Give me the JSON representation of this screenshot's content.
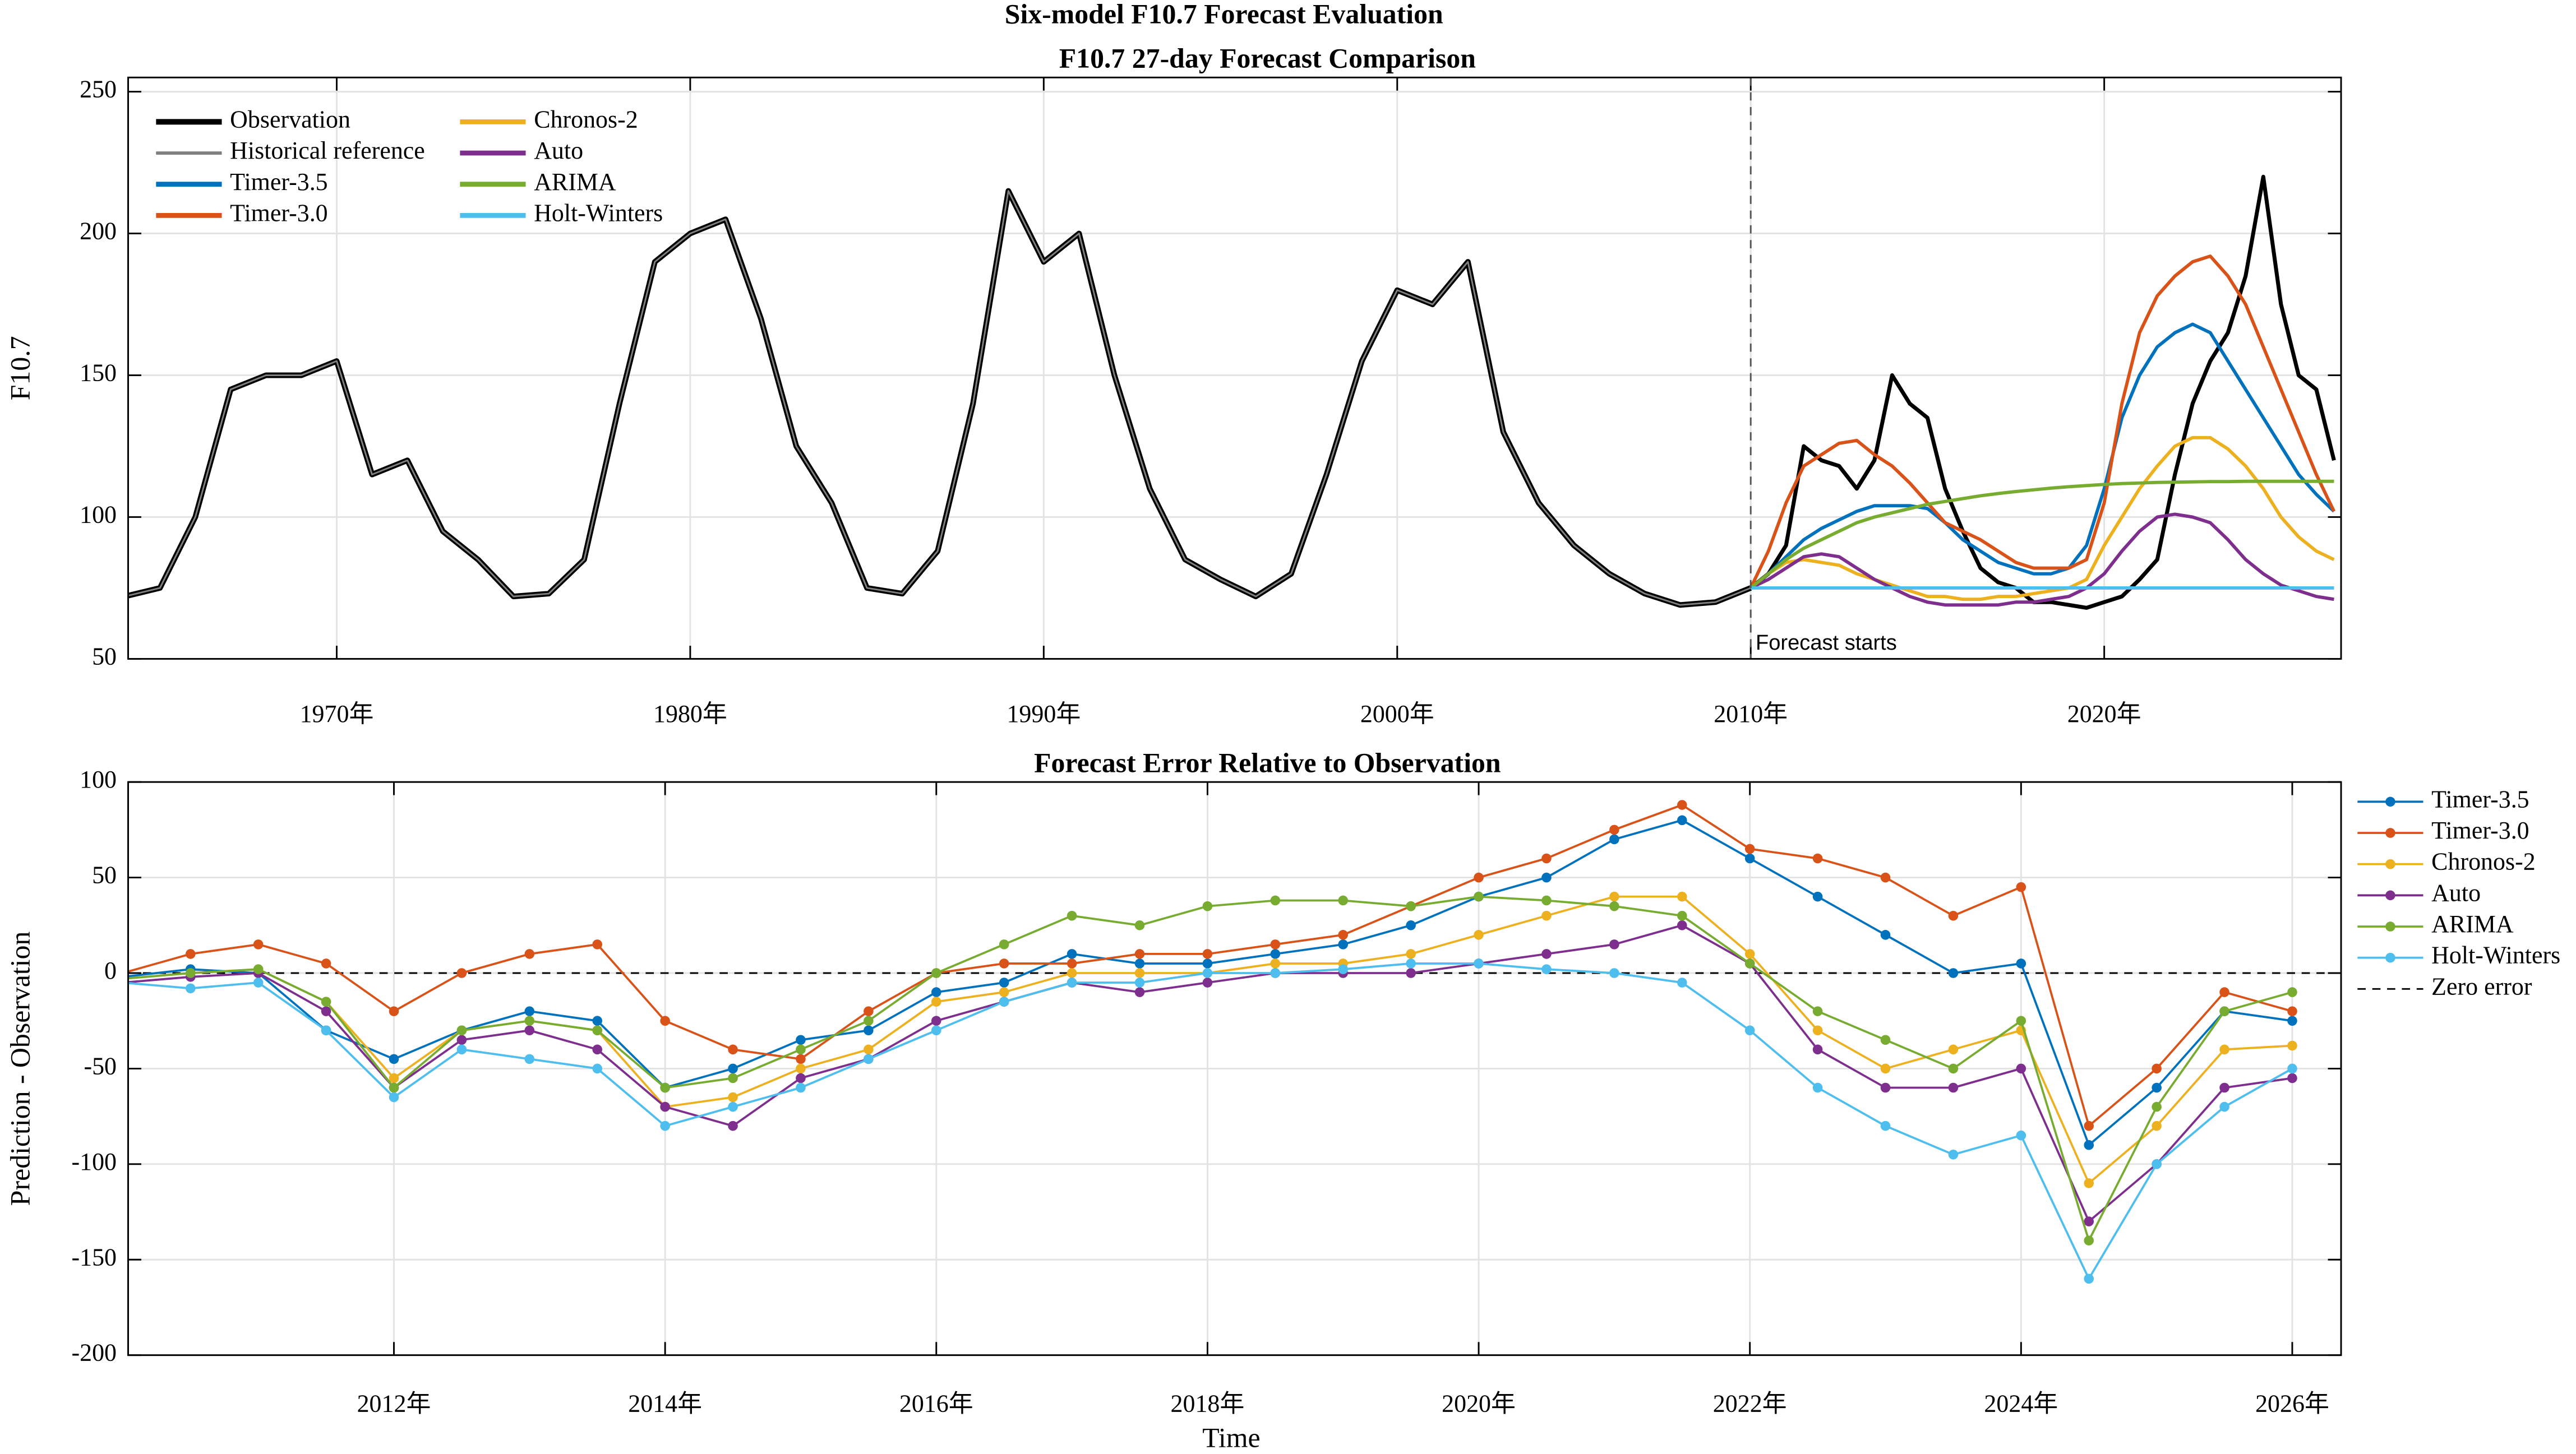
{
  "title": "Six-model F10.7 Forecast Evaluation",
  "chart_data": [
    {
      "type": "line",
      "title": "F10.7 27-day Forecast Comparison",
      "ylabel": "F10.7",
      "xlim": [
        1964.1,
        2026.7
      ],
      "ylim": [
        50,
        255
      ],
      "xticks": [
        {
          "value": 1970,
          "label": "1970年"
        },
        {
          "value": 1980,
          "label": "1980年"
        },
        {
          "value": 1990,
          "label": "1990年"
        },
        {
          "value": 2000,
          "label": "2000年"
        },
        {
          "value": 2010,
          "label": "2010年"
        },
        {
          "value": 2020,
          "label": "2020年"
        }
      ],
      "yticks": [
        50,
        100,
        150,
        200,
        250
      ],
      "grid": true,
      "legend": "upper left",
      "legend_columns": 2,
      "annotation": {
        "text": "Forecast starts",
        "x": 2010
      },
      "x": [
        2010,
        2010.5,
        2011,
        2011.5,
        2012,
        2012.5,
        2013,
        2013.5,
        2014,
        2014.5,
        2015,
        2015.5,
        2016,
        2016.5,
        2017,
        2017.5,
        2018,
        2018.5,
        2019,
        2019.5,
        2020,
        2020.5,
        2021,
        2021.5,
        2022,
        2022.5,
        2023,
        2023.5,
        2024,
        2024.5,
        2025,
        2025.5,
        2026,
        2026.5
      ],
      "series": [
        {
          "name": "Observation",
          "color": "#000000",
          "width": 2.4,
          "values": [
            75,
            80,
            90,
            125,
            120,
            118,
            110,
            120,
            150,
            140,
            135,
            110,
            95,
            82,
            77,
            75,
            70,
            70,
            69,
            68,
            70,
            72,
            78,
            85,
            115,
            140,
            155,
            165,
            185,
            220,
            175,
            150,
            145,
            120
          ]
        },
        {
          "name": "Historical reference",
          "color": "#808080",
          "width": 1,
          "outlined": true,
          "x": [
            1964,
            1965,
            1966,
            1967,
            1968,
            1969,
            1970,
            1971,
            1972,
            1973,
            1974,
            1975,
            1976,
            1977,
            1978,
            1979,
            1980,
            1981,
            1982,
            1983,
            1984,
            1985,
            1986,
            1987,
            1988,
            1989,
            1990,
            1991,
            1992,
            1993,
            1994,
            1995,
            1996,
            1997,
            1998,
            1999,
            2000,
            2001,
            2002,
            2003,
            2004,
            2005,
            2006,
            2007,
            2008,
            2009,
            2010
          ],
          "values": [
            72,
            75,
            100,
            145,
            150,
            150,
            155,
            115,
            120,
            95,
            85,
            72,
            73,
            85,
            140,
            190,
            200,
            205,
            170,
            125,
            105,
            75,
            73,
            88,
            140,
            215,
            190,
            200,
            150,
            110,
            85,
            78,
            72,
            80,
            115,
            155,
            180,
            175,
            190,
            130,
            105,
            90,
            80,
            73,
            69,
            70,
            75
          ]
        },
        {
          "name": "Timer-3.5",
          "color": "#0072BD",
          "width": 2,
          "values": [
            75,
            80,
            86,
            92,
            96,
            99,
            102,
            104,
            104,
            104,
            103,
            98,
            92,
            88,
            84,
            82,
            80,
            80,
            82,
            90,
            110,
            135,
            150,
            160,
            165,
            168,
            165,
            155,
            145,
            135,
            125,
            115,
            108,
            102
          ]
        },
        {
          "name": "Timer-3.0",
          "color": "#D95319",
          "width": 2,
          "values": [
            75,
            88,
            105,
            118,
            122,
            126,
            127,
            122,
            118,
            112,
            105,
            98,
            95,
            92,
            88,
            84,
            82,
            82,
            82,
            85,
            105,
            140,
            165,
            178,
            185,
            190,
            192,
            185,
            175,
            160,
            145,
            130,
            115,
            102
          ]
        },
        {
          "name": "Chronos-2",
          "color": "#EDB120",
          "width": 2,
          "values": [
            75,
            80,
            84,
            85,
            84,
            83,
            80,
            78,
            76,
            74,
            72,
            72,
            71,
            71,
            72,
            72,
            73,
            74,
            75,
            78,
            90,
            100,
            110,
            118,
            125,
            128,
            128,
            124,
            118,
            110,
            100,
            93,
            88,
            85
          ]
        },
        {
          "name": "Auto",
          "color": "#7E2F8E",
          "width": 2,
          "values": [
            75,
            78,
            82,
            86,
            87,
            86,
            82,
            78,
            75,
            72,
            70,
            69,
            69,
            69,
            69,
            70,
            70,
            71,
            72,
            75,
            80,
            88,
            95,
            100,
            101,
            100,
            98,
            92,
            85,
            80,
            76,
            74,
            72,
            71
          ]
        },
        {
          "name": "ARIMA",
          "color": "#77AC30",
          "width": 2,
          "values": [
            75,
            80,
            85,
            89,
            92,
            95,
            98,
            100,
            101.5,
            103,
            104.5,
            105.5,
            106.5,
            107.5,
            108.3,
            109,
            109.6,
            110.2,
            110.7,
            111.1,
            111.5,
            111.8,
            112,
            112.2,
            112.3,
            112.4,
            112.5,
            112.5,
            112.6,
            112.6,
            112.6,
            112.6,
            112.6,
            112.6
          ]
        },
        {
          "name": "Holt-Winters",
          "color": "#4DBEEE",
          "width": 2,
          "values": [
            75,
            75,
            75,
            75,
            75,
            75,
            75,
            75,
            75,
            75,
            75,
            75,
            75,
            75,
            75,
            75,
            75,
            75,
            75,
            75,
            75,
            75,
            75,
            75,
            75,
            75,
            75,
            75,
            75,
            75,
            75,
            75,
            75,
            75
          ]
        }
      ]
    },
    {
      "type": "line",
      "title": "Forecast Error Relative to Observation",
      "ylabel": "Prediction - Observation",
      "xlabel": "Time",
      "xlim": [
        2010.04,
        2026.36
      ],
      "ylim": [
        -200,
        100
      ],
      "xticks": [
        {
          "value": 2012,
          "label": "2012年"
        },
        {
          "value": 2014,
          "label": "2014年"
        },
        {
          "value": 2016,
          "label": "2016年"
        },
        {
          "value": 2018,
          "label": "2018年"
        },
        {
          "value": 2020,
          "label": "2020年"
        },
        {
          "value": 2022,
          "label": "2022年"
        },
        {
          "value": 2024,
          "label": "2024年"
        },
        {
          "value": 2026,
          "label": "2026年"
        }
      ],
      "yticks": [
        -200,
        -150,
        -100,
        -50,
        0,
        50,
        100
      ],
      "grid": true,
      "legend": "outside right",
      "markers": true,
      "reference_lines": [
        {
          "name": "Zero error",
          "y": 0,
          "color": "#000000",
          "dashed": true
        }
      ],
      "x": [
        2010,
        2010.5,
        2011,
        2011.5,
        2012,
        2012.5,
        2013,
        2013.5,
        2014,
        2014.5,
        2015,
        2015.5,
        2016,
        2016.5,
        2017,
        2017.5,
        2018,
        2018.5,
        2019,
        2019.5,
        2020,
        2020.5,
        2021,
        2021.5,
        2022,
        2022.5,
        2023,
        2023.5,
        2024,
        2024.5,
        2025,
        2025.5,
        2026
      ],
      "series": [
        {
          "name": "Timer-3.5",
          "color": "#0072BD",
          "width": 1.3,
          "values": [
            -2,
            2,
            0,
            -30,
            -45,
            -30,
            -20,
            -25,
            -60,
            -50,
            -35,
            -30,
            -10,
            -5,
            10,
            5,
            5,
            10,
            15,
            25,
            40,
            50,
            70,
            80,
            60,
            40,
            20,
            0,
            5,
            -90,
            -60,
            -20,
            -25
          ]
        },
        {
          "name": "Timer-3.0",
          "color": "#D95319",
          "width": 1.3,
          "values": [
            0,
            10,
            15,
            5,
            -20,
            0,
            10,
            15,
            -25,
            -40,
            -45,
            -20,
            0,
            5,
            5,
            10,
            10,
            15,
            20,
            35,
            50,
            60,
            75,
            88,
            65,
            60,
            50,
            30,
            45,
            -80,
            -50,
            -10,
            -20
          ]
        },
        {
          "name": "Chronos-2",
          "color": "#EDB120",
          "width": 1.3,
          "values": [
            -3,
            0,
            2,
            -15,
            -55,
            -30,
            -25,
            -30,
            -70,
            -65,
            -50,
            -40,
            -15,
            -10,
            0,
            0,
            0,
            5,
            5,
            10,
            20,
            30,
            40,
            40,
            10,
            -30,
            -50,
            -40,
            -30,
            -110,
            -80,
            -40,
            -38
          ]
        },
        {
          "name": "Auto",
          "color": "#7E2F8E",
          "width": 1.3,
          "values": [
            -5,
            -2,
            0,
            -20,
            -60,
            -35,
            -30,
            -40,
            -70,
            -80,
            -55,
            -45,
            -25,
            -15,
            -5,
            -10,
            -5,
            0,
            0,
            0,
            5,
            10,
            15,
            25,
            5,
            -40,
            -60,
            -60,
            -50,
            -130,
            -100,
            -60,
            -55
          ]
        },
        {
          "name": "ARIMA",
          "color": "#77AC30",
          "width": 1.3,
          "values": [
            -3,
            0,
            2,
            -15,
            -60,
            -30,
            -25,
            -30,
            -60,
            -55,
            -40,
            -25,
            0,
            15,
            30,
            25,
            35,
            38,
            38,
            35,
            40,
            38,
            35,
            30,
            5,
            -20,
            -35,
            -50,
            -25,
            -140,
            -70,
            -20,
            -10
          ]
        },
        {
          "name": "Holt-Winters",
          "color": "#4DBEEE",
          "width": 1.3,
          "values": [
            -5,
            -8,
            -5,
            -30,
            -65,
            -40,
            -45,
            -50,
            -80,
            -70,
            -60,
            -45,
            -30,
            -15,
            -5,
            -5,
            0,
            0,
            2,
            5,
            5,
            2,
            0,
            -5,
            -30,
            -60,
            -80,
            -95,
            -85,
            -160,
            -100,
            -70,
            -50
          ]
        }
      ]
    }
  ]
}
